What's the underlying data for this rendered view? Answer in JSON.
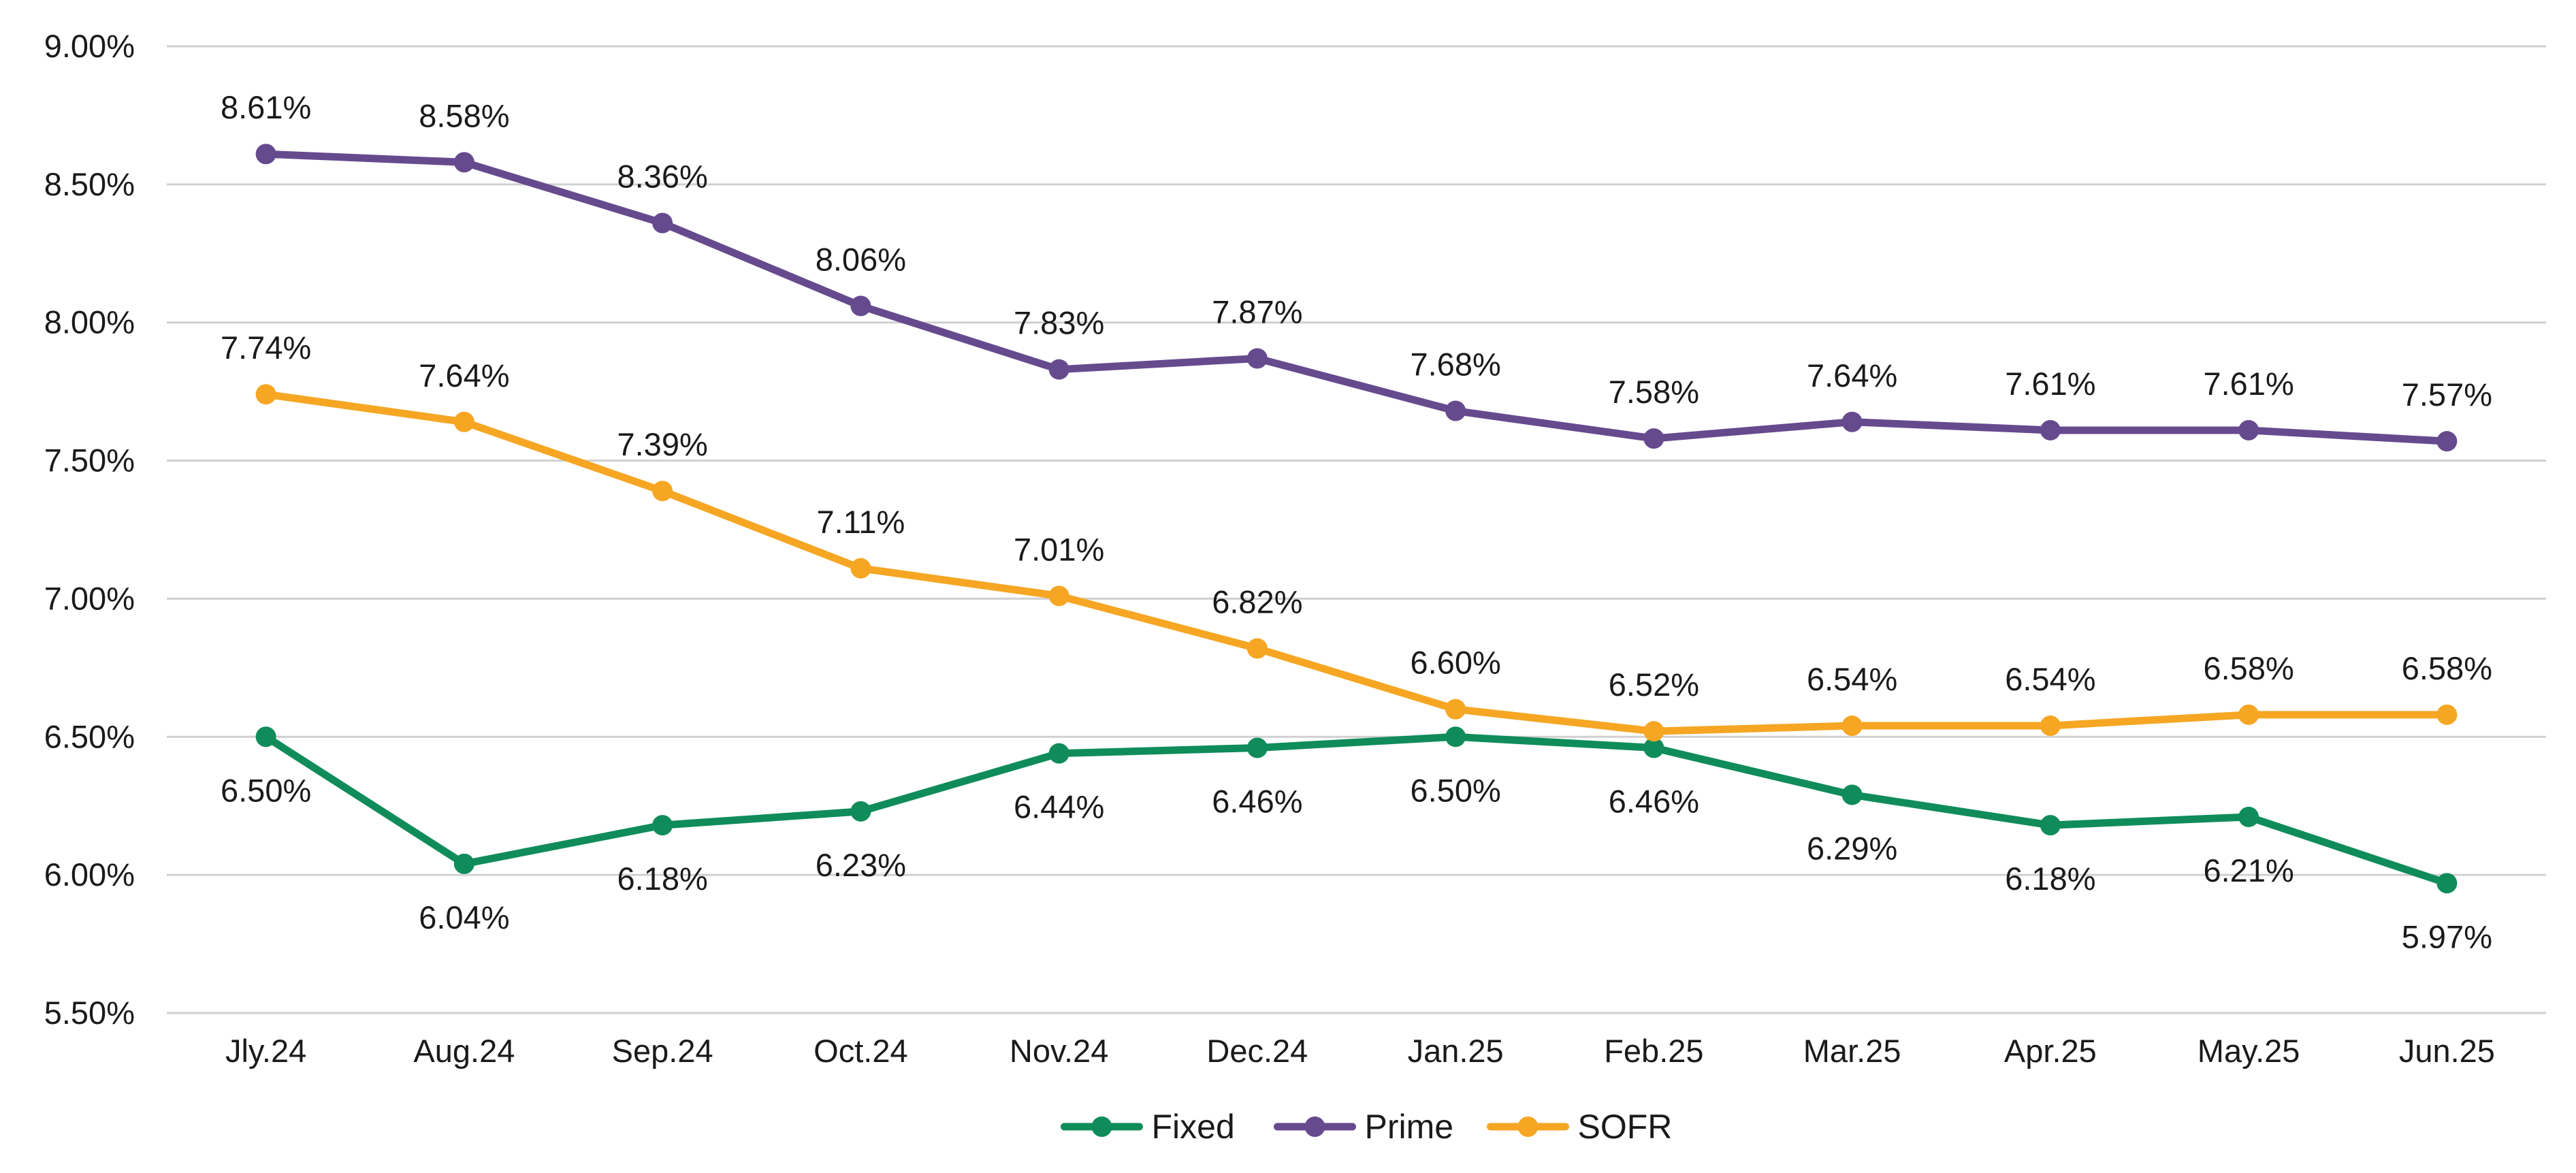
{
  "chart_data": {
    "type": "line",
    "categories": [
      "Jly.24",
      "Aug.24",
      "Sep.24",
      "Oct.24",
      "Nov.24",
      "Dec.24",
      "Jan.25",
      "Feb.25",
      "Mar.25",
      "Apr.25",
      "May.25",
      "Jun.25"
    ],
    "series": [
      {
        "name": "Fixed",
        "color": "#0f8c5a",
        "values": [
          6.5,
          6.04,
          6.18,
          6.23,
          6.44,
          6.46,
          6.5,
          6.46,
          6.29,
          6.18,
          6.21,
          5.97
        ],
        "labels": [
          "6.50%",
          "6.04%",
          "6.18%",
          "6.23%",
          "6.44%",
          "6.46%",
          "6.50%",
          "6.46%",
          "6.29%",
          "6.18%",
          "6.21%",
          "5.97%"
        ],
        "label_position": "below"
      },
      {
        "name": "Prime",
        "color": "#664a8e",
        "values": [
          8.61,
          8.58,
          8.36,
          8.06,
          7.83,
          7.87,
          7.68,
          7.58,
          7.64,
          7.61,
          7.61,
          7.57
        ],
        "labels": [
          "8.61%",
          "8.58%",
          "8.36%",
          "8.06%",
          "7.83%",
          "7.87%",
          "7.68%",
          "7.58%",
          "7.64%",
          "7.61%",
          "7.61%",
          "7.57%"
        ],
        "label_position": "above"
      },
      {
        "name": "SOFR",
        "color": "#f6a623",
        "values": [
          7.74,
          7.64,
          7.39,
          7.11,
          7.01,
          6.82,
          6.6,
          6.52,
          6.54,
          6.54,
          6.58,
          6.58
        ],
        "labels": [
          "7.74%",
          "7.64%",
          "7.39%",
          "7.11%",
          "7.01%",
          "6.82%",
          "6.60%",
          "6.52%",
          "6.54%",
          "6.54%",
          "6.58%",
          "6.58%"
        ],
        "label_position": "above"
      }
    ],
    "y_ticks": [
      5.5,
      6.0,
      6.5,
      7.0,
      7.5,
      8.0,
      8.5,
      9.0
    ],
    "y_tick_labels": [
      "5.50%",
      "6.00%",
      "6.50%",
      "7.00%",
      "7.50%",
      "8.00%",
      "8.50%",
      "9.00%"
    ],
    "ylim": [
      5.5,
      9.0
    ],
    "grid": true,
    "legend_position": "bottom-center",
    "title": "",
    "xlabel": "",
    "ylabel": ""
  }
}
